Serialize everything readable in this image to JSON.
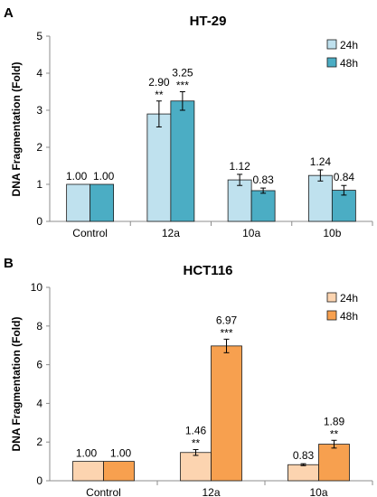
{
  "chart_data": [
    {
      "type": "bar",
      "panel": "A",
      "title": "HT-29",
      "xlabel": "",
      "ylabel": "DNA Fragmentation (Fold)",
      "ylim": [
        0,
        5
      ],
      "yticks": [
        "0",
        "1",
        "2",
        "3",
        "4",
        "5"
      ],
      "grid": false,
      "legend_position": "top-right",
      "categories": [
        "Control",
        "12a",
        "10a",
        "10b"
      ],
      "series": [
        {
          "name": "24h",
          "color": "#bfe1ee",
          "values": [
            1.0,
            2.9,
            1.12,
            1.24
          ],
          "errors": [
            0,
            0.35,
            0.15,
            0.15
          ],
          "value_labels": [
            "1.00",
            "2.90",
            "1.12",
            "1.24"
          ],
          "significance": [
            "",
            "**",
            "",
            ""
          ]
        },
        {
          "name": "48h",
          "color": "#4badc4",
          "values": [
            1.0,
            3.25,
            0.83,
            0.84
          ],
          "errors": [
            0,
            0.25,
            0.07,
            0.13
          ],
          "value_labels": [
            "1.00",
            "3.25",
            "0.83",
            "0.84"
          ],
          "significance": [
            "",
            "***",
            "",
            ""
          ]
        }
      ]
    },
    {
      "type": "bar",
      "panel": "B",
      "title": "HCT116",
      "xlabel": "",
      "ylabel": "DNA Fragmentation (Fold)",
      "ylim": [
        0,
        10
      ],
      "yticks": [
        "0",
        "2",
        "4",
        "6",
        "8",
        "10"
      ],
      "grid": false,
      "legend_position": "top-right",
      "categories": [
        "Control",
        "12a",
        "10a"
      ],
      "series": [
        {
          "name": "24h",
          "color": "#fcd4b0",
          "values": [
            1.0,
            1.46,
            0.83
          ],
          "errors": [
            0,
            0.15,
            0.05
          ],
          "value_labels": [
            "1.00",
            "1.46",
            "0.83"
          ],
          "significance": [
            "",
            "**",
            ""
          ]
        },
        {
          "name": "48h",
          "color": "#f7a04f",
          "values": [
            1.0,
            6.97,
            1.89
          ],
          "errors": [
            0,
            0.35,
            0.2
          ],
          "value_labels": [
            "1.00",
            "6.97",
            "1.89"
          ],
          "significance": [
            "",
            "***",
            "**"
          ]
        }
      ]
    }
  ]
}
